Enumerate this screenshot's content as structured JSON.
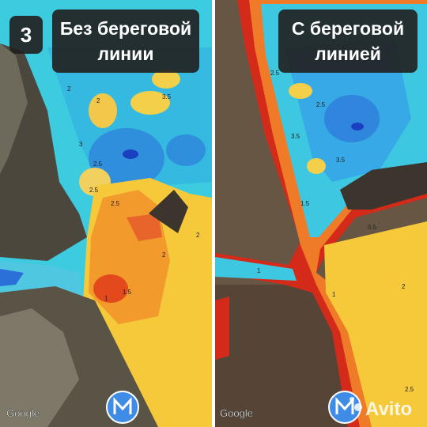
{
  "badge": "3",
  "panels": [
    {
      "label_lines": [
        "Без береговой",
        "линии"
      ],
      "logo": "Google",
      "contour_labels": [
        "2",
        "2.5",
        "3.5",
        "2",
        "2.5",
        "3",
        "2",
        "1",
        "2",
        "1.5",
        "2.5"
      ]
    },
    {
      "label_lines": [
        "С береговой",
        "линией"
      ],
      "logo": "Google",
      "contour_labels": [
        "2.5",
        "3.5",
        "2.5",
        "3.5",
        "1.5",
        "1",
        "0.5",
        "2",
        "1",
        "2.5"
      ]
    }
  ],
  "watermark": "Avito"
}
